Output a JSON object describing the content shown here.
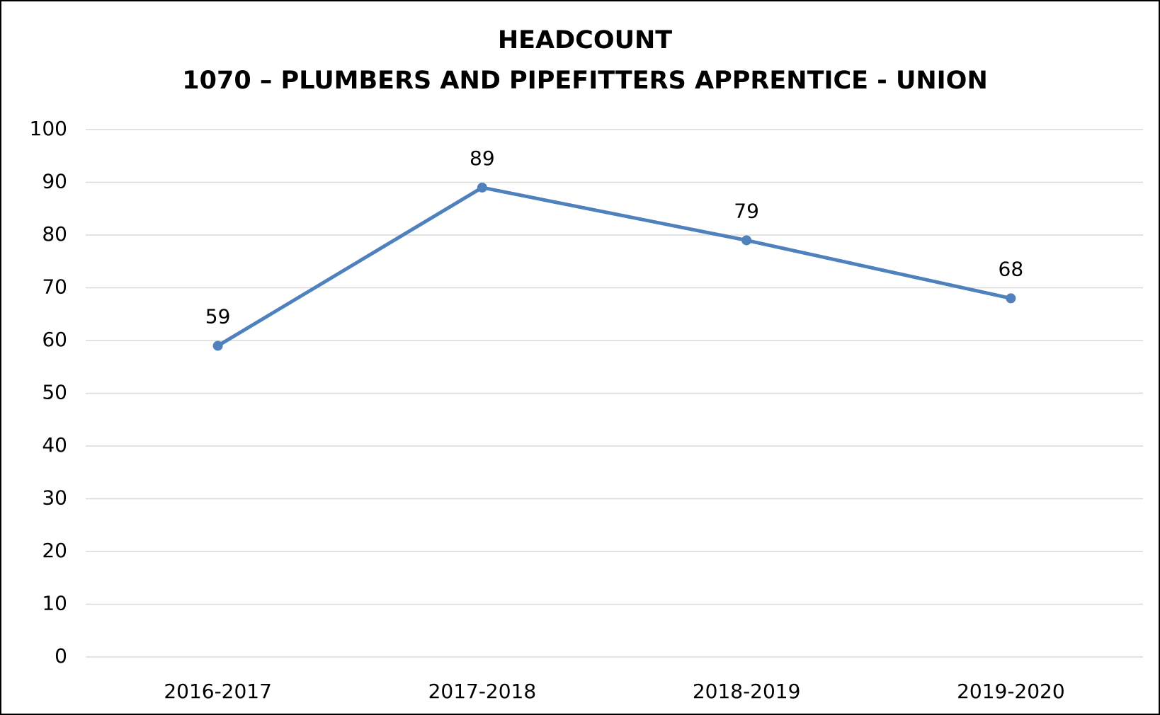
{
  "chart_data": {
    "type": "line",
    "title": "HEADCOUNT",
    "subtitle": "1070 – PLUMBERS AND PIPEFITTERS APPRENTICE - UNION",
    "categories": [
      "2016-2017",
      "2017-2018",
      "2018-2019",
      "2019-2020"
    ],
    "series": [
      {
        "name": "Headcount",
        "color": "#4f81bd",
        "values": [
          59,
          89,
          79,
          68
        ]
      }
    ],
    "ylim": [
      0,
      100
    ],
    "yticks": [
      0,
      10,
      20,
      30,
      40,
      50,
      60,
      70,
      80,
      90,
      100
    ],
    "grid": true,
    "legend": false
  }
}
